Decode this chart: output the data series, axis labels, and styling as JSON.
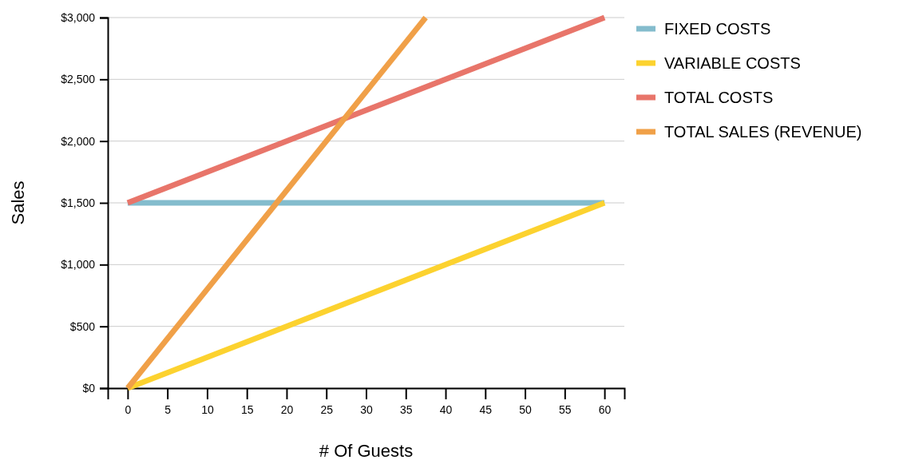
{
  "chart_data": {
    "type": "line",
    "xlabel": "# Of Guests",
    "ylabel": "Sales",
    "xlim": [
      -2.5,
      62.5
    ],
    "xticks": [
      0,
      5,
      10,
      15,
      20,
      25,
      30,
      35,
      40,
      45,
      50,
      55,
      60
    ],
    "ylim": [
      0,
      3000
    ],
    "yticks": [
      {
        "value": 0,
        "label": "$0"
      },
      {
        "value": 500,
        "label": "$500"
      },
      {
        "value": 1000,
        "label": "$1,000"
      },
      {
        "value": 1500,
        "label": "$1,500"
      },
      {
        "value": 2000,
        "label": "$2,000"
      },
      {
        "value": 2500,
        "label": "$2,500"
      },
      {
        "value": 3000,
        "label": "$3,000"
      }
    ],
    "grid": "y",
    "legend": "right",
    "marker": "none",
    "line_style": "solid",
    "series": [
      {
        "name": "FIXED COSTS",
        "color": "#84bccd",
        "x": [
          0,
          60
        ],
        "values": [
          1500,
          1500
        ]
      },
      {
        "name": "VARIABLE COSTS",
        "color": "#fcd22f",
        "x": [
          0,
          60
        ],
        "values": [
          0,
          1500
        ]
      },
      {
        "name": "TOTAL COSTS",
        "color": "#e8756a",
        "x": [
          0,
          60
        ],
        "values": [
          1500,
          3000
        ]
      },
      {
        "name": "TOTAL SALES (REVENUE)",
        "color": "#f0a048",
        "x": [
          0,
          37.5
        ],
        "values": [
          0,
          3000
        ]
      }
    ]
  }
}
